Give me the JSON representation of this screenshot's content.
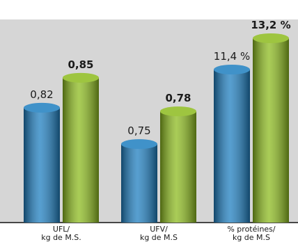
{
  "chart_data": [
    {
      "type": "bar",
      "categories": [
        "UFL/\nkg de M.S."
      ],
      "ylim": [
        0.705,
        0.907
      ],
      "series": [
        {
          "color": "#1f7fc0",
          "values": [
            0.82
          ],
          "value_labels": [
            "0,82"
          ]
        },
        {
          "color": "#8dbb1f",
          "values": [
            0.85
          ],
          "value_labels": [
            "0,85"
          ]
        }
      ]
    },
    {
      "type": "bar",
      "categories": [
        "UFV/\nkg de M.S"
      ],
      "ylim": [
        0.678,
        0.863
      ],
      "series": [
        {
          "color": "#1f7fc0",
          "values": [
            0.75
          ],
          "value_labels": [
            "0,75"
          ]
        },
        {
          "color": "#8dbb1f",
          "values": [
            0.78
          ],
          "value_labels": [
            "0,78"
          ]
        }
      ]
    },
    {
      "type": "bar",
      "categories": [
        "% protéines/\nkg de M.S"
      ],
      "ylim": [
        2.6,
        14.2
      ],
      "series": [
        {
          "color": "#1f7fc0",
          "values": [
            11.4
          ],
          "value_labels": [
            "11,4 %"
          ]
        },
        {
          "color": "#8dbb1f",
          "values": [
            13.2
          ],
          "value_labels": [
            "13,2 %"
          ]
        }
      ]
    }
  ]
}
